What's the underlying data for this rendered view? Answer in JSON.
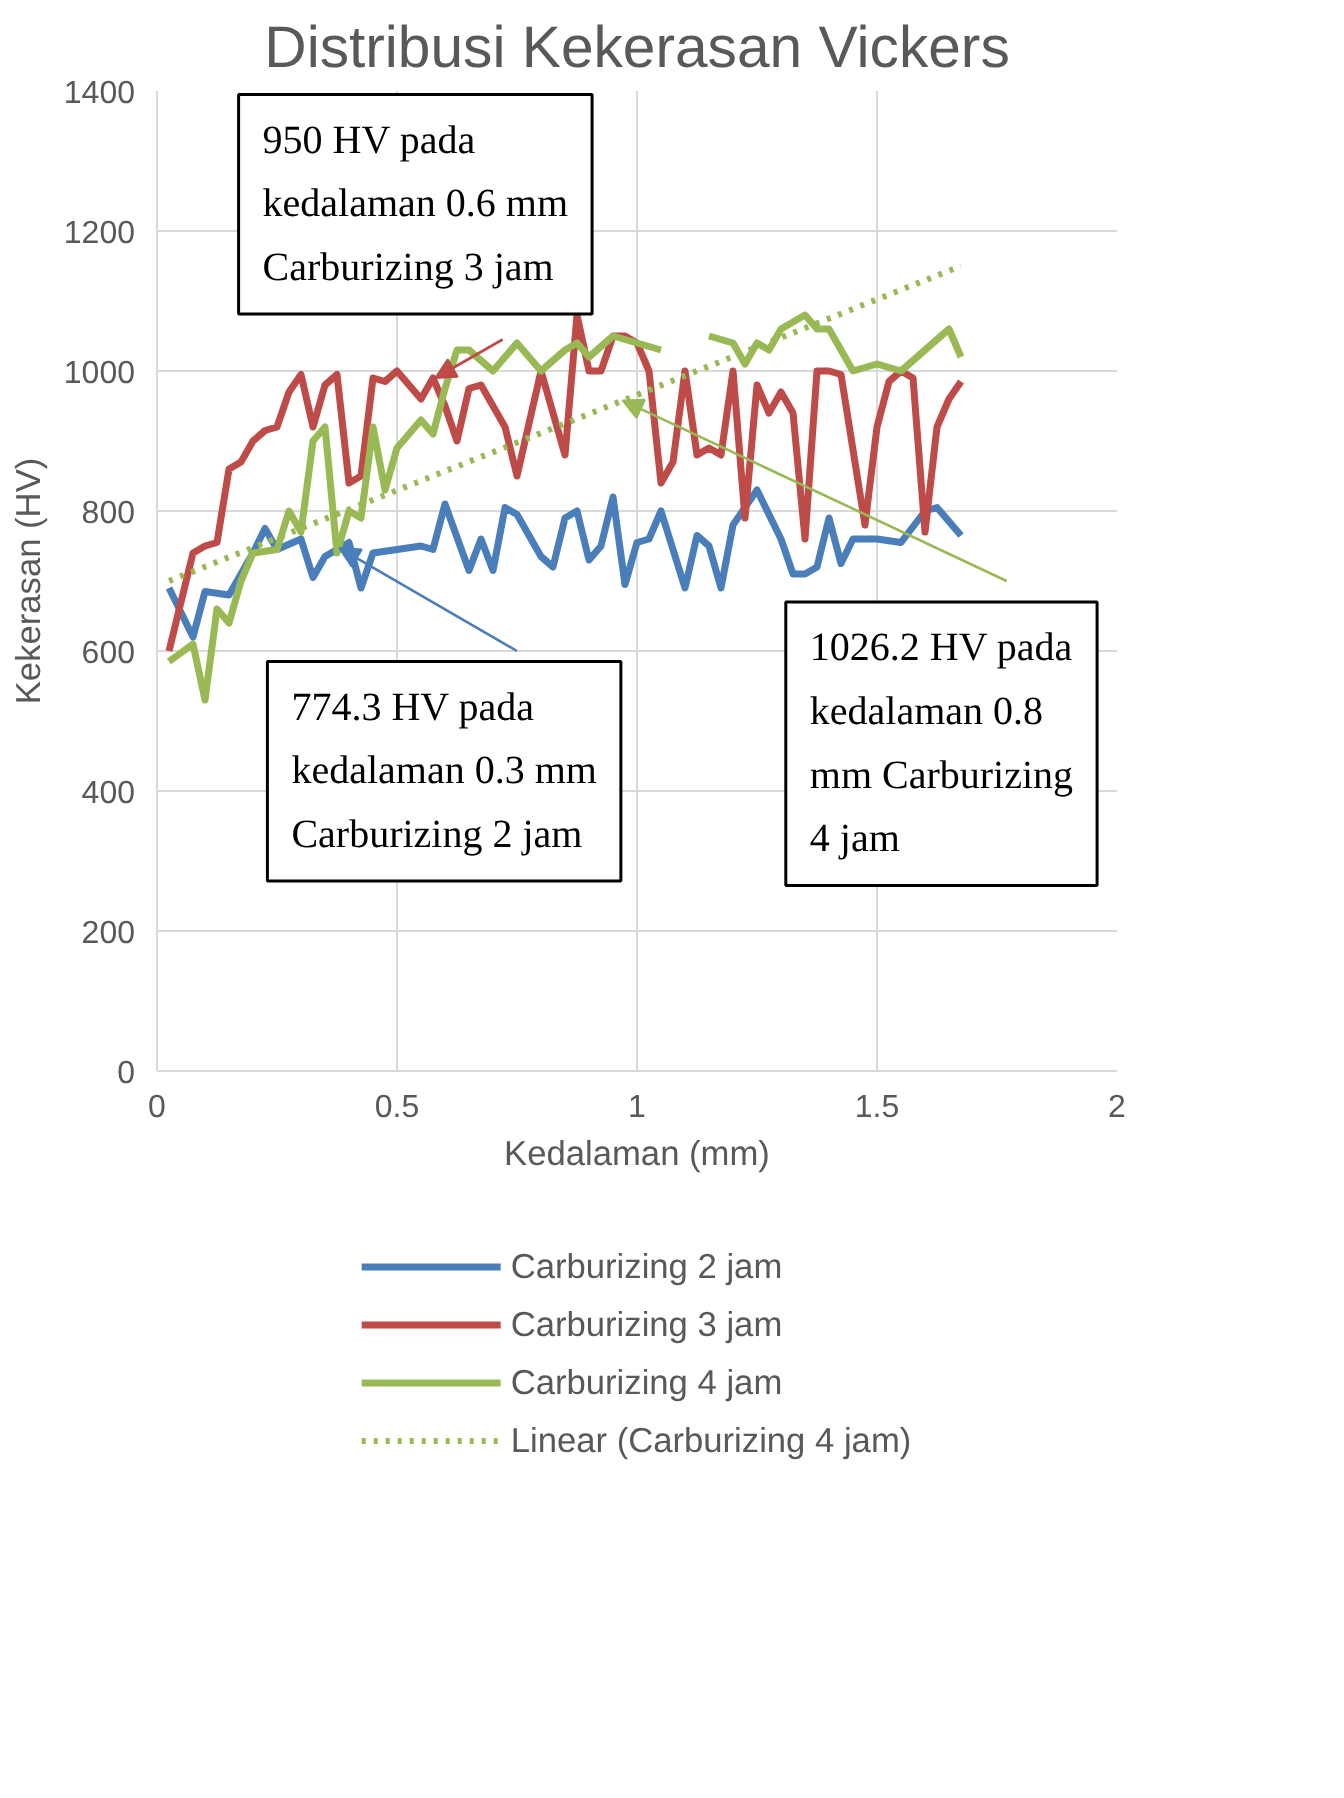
{
  "chart_data": {
    "type": "line",
    "title": "Distribusi Kekerasan Vickers",
    "xlabel": "Kedalaman (mm)",
    "ylabel": "Kekerasan (HV)",
    "xlim": [
      0,
      2
    ],
    "xticks": [
      0,
      0.5,
      1,
      1.5,
      2
    ],
    "ylim": [
      0,
      1400
    ],
    "yticks": [
      0,
      200,
      400,
      600,
      800,
      1000,
      1200,
      1400
    ],
    "grid": true,
    "legend": "bottom",
    "series": [
      {
        "name": "Carburizing 2 jam",
        "color": "#4a7ebb",
        "x": [
          0.025,
          0.075,
          0.1,
          0.15,
          0.2,
          0.225,
          0.25,
          0.3,
          0.325,
          0.35,
          0.4,
          0.425,
          0.45,
          0.5,
          0.55,
          0.575,
          0.6,
          0.65,
          0.675,
          0.7,
          0.725,
          0.75,
          0.8,
          0.825,
          0.85,
          0.875,
          0.9,
          0.925,
          0.95,
          0.975,
          1.0,
          1.025,
          1.05,
          1.1,
          1.125,
          1.15,
          1.175,
          1.2,
          1.25,
          1.3,
          1.325,
          1.35,
          1.375,
          1.4,
          1.425,
          1.45,
          1.5,
          1.55,
          1.6,
          1.625,
          1.675
        ],
        "values": [
          690,
          620,
          685,
          680,
          740,
          775,
          745,
          760,
          705,
          735,
          755,
          690,
          740,
          745,
          750,
          745,
          810,
          715,
          760,
          715,
          805,
          795,
          735,
          720,
          790,
          800,
          730,
          750,
          820,
          695,
          755,
          760,
          800,
          690,
          765,
          750,
          690,
          780,
          830,
          760,
          710,
          710,
          720,
          790,
          725,
          760,
          760,
          755,
          800,
          805,
          765
        ]
      },
      {
        "name": "Carburizing 3 jam",
        "color": "#be4b48",
        "x": [
          0.025,
          0.075,
          0.1,
          0.125,
          0.15,
          0.175,
          0.2,
          0.225,
          0.25,
          0.275,
          0.3,
          0.325,
          0.35,
          0.375,
          0.4,
          0.425,
          0.45,
          0.475,
          0.5,
          0.55,
          0.575,
          0.6,
          0.625,
          0.65,
          0.675,
          0.7,
          0.725,
          0.75,
          0.8,
          0.825,
          0.85,
          0.875,
          0.9,
          0.925,
          0.95,
          0.975,
          1.0,
          1.025,
          1.05,
          1.075,
          1.1,
          1.125,
          1.15,
          1.175,
          1.2,
          1.225,
          1.25,
          1.275,
          1.3,
          1.325,
          1.35,
          1.375,
          1.4,
          1.425,
          1.475,
          1.5,
          1.525,
          1.55,
          1.575,
          1.6,
          1.625,
          1.65,
          1.675
        ],
        "values": [
          600,
          740,
          750,
          755,
          860,
          870,
          900,
          915,
          920,
          970,
          995,
          920,
          980,
          995,
          840,
          850,
          990,
          985,
          1000,
          960,
          990,
          950,
          900,
          975,
          980,
          950,
          920,
          850,
          1000,
          940,
          880,
          1080,
          1000,
          1000,
          1050,
          1050,
          1040,
          1000,
          840,
          870,
          1000,
          880,
          890,
          880,
          1000,
          790,
          980,
          940,
          970,
          940,
          760,
          1000,
          1000,
          995,
          780,
          920,
          985,
          1000,
          990,
          770,
          920,
          960,
          985
        ]
      },
      {
        "name": "Carburizing 4 jam",
        "color": "#98b954",
        "x": [
          0.025,
          0.075,
          0.1,
          0.125,
          0.15,
          0.175,
          0.2,
          0.25,
          0.275,
          0.3,
          0.325,
          0.35,
          0.375,
          0.4,
          0.425,
          0.45,
          0.475,
          0.5,
          0.55,
          0.575,
          0.6,
          0.625,
          0.65,
          0.7,
          0.75,
          0.8,
          0.85,
          0.875,
          0.9,
          0.95,
          1.0,
          1.05,
          1.075,
          1.1,
          1.125,
          1.15,
          1.2,
          1.225,
          1.25,
          1.275,
          1.3,
          1.35,
          1.375,
          1.4,
          1.45,
          1.5,
          1.55,
          1.6,
          1.65,
          1.675
        ],
        "values": [
          585,
          610,
          530,
          660,
          640,
          700,
          740,
          745,
          800,
          770,
          900,
          920,
          740,
          800,
          790,
          920,
          830,
          890,
          930,
          910,
          975,
          1030,
          1030,
          1000,
          1040,
          1000,
          1030,
          1040,
          1020,
          1050,
          1040,
          1030,
          null,
          null,
          null,
          1050,
          1040,
          1010,
          1040,
          1030,
          1060,
          1080,
          1060,
          1060,
          1000,
          1010,
          1000,
          1030,
          1060,
          1020
        ]
      },
      {
        "name": "Linear (Carburizing 4 jam)",
        "color": "#98b954",
        "line_style": "dotted",
        "x": [
          0.025,
          1.675
        ],
        "values": [
          700,
          1150
        ]
      }
    ],
    "annotations": [
      "950 HV pada",
      "kedalaman 0.6 mm",
      {
        "text": "Carburizing 3 jam",
        "x": 0.58,
        "y": 990
      },
      {
        "text": "774.3 HV pada",
        "x": 0.38,
        "y": 747
      },
      "kedalaman 0.3 mm",
      "Carburizing 2 jam",
      {
        "text": "1026.2 HV pada",
        "x": 0.97,
        "y": 958
      },
      "kedalaman 0.8",
      "mm Carburizing",
      "4 jam"
    ]
  }
}
